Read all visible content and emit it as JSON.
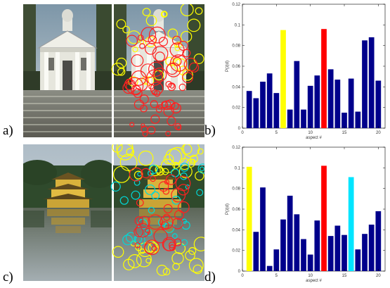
{
  "figure": {
    "panels": [
      {
        "label": "a)"
      },
      {
        "label": "b)"
      },
      {
        "label": "c)"
      },
      {
        "label": "d)"
      }
    ]
  },
  "colors": {
    "bar_default": "#00008b",
    "highlight_yellow": "#ffff00",
    "highlight_red": "#ff0000",
    "highlight_cyan": "#00e5ff",
    "circle_yellow": "#ffff00",
    "circle_red": "#ff2020",
    "circle_cyan": "#00d8d8"
  },
  "images": [
    {
      "subject": "church-photo-with-detected-features",
      "circle_colors": [
        "yellow",
        "red"
      ]
    },
    {
      "subject": "golden-pavilion-photo-with-detected-features",
      "circle_colors": [
        "yellow",
        "red",
        "cyan"
      ]
    }
  ],
  "chart_data": [
    {
      "type": "bar",
      "xlabel": "aspect #",
      "ylabel": "P(z|d)",
      "xlim": [
        0,
        21
      ],
      "ylim": [
        0,
        0.12
      ],
      "xticks": [
        0,
        5,
        10,
        15,
        20
      ],
      "yticks": [
        0,
        0.02,
        0.04,
        0.06,
        0.08,
        0.1,
        0.12
      ],
      "ytick_labels": [
        "0",
        "0.02",
        "0.04",
        "0.06",
        "0.08",
        "0.1",
        "0.12"
      ],
      "x": [
        1,
        2,
        3,
        4,
        5,
        6,
        7,
        8,
        9,
        10,
        11,
        12,
        13,
        14,
        15,
        16,
        17,
        18,
        19,
        20
      ],
      "values": [
        0.036,
        0.029,
        0.045,
        0.053,
        0.034,
        0.095,
        0.018,
        0.065,
        0.018,
        0.041,
        0.051,
        0.096,
        0.057,
        0.047,
        0.015,
        0.048,
        0.016,
        0.085,
        0.088,
        0.046
      ],
      "highlight": {
        "6": "yellow",
        "12": "red"
      }
    },
    {
      "type": "bar",
      "xlabel": "aspect #",
      "ylabel": "P(z|d)",
      "xlim": [
        0,
        21
      ],
      "ylim": [
        0,
        0.12
      ],
      "xticks": [
        0,
        5,
        10,
        15,
        20
      ],
      "yticks": [
        0,
        0.02,
        0.04,
        0.06,
        0.08,
        0.1,
        0.12
      ],
      "ytick_labels": [
        "0",
        "0.02",
        "0.04",
        "0.06",
        "0.08",
        "0.1",
        "0.12"
      ],
      "x": [
        1,
        2,
        3,
        4,
        5,
        6,
        7,
        8,
        9,
        10,
        11,
        12,
        13,
        14,
        15,
        16,
        17,
        18,
        19,
        20
      ],
      "values": [
        0.101,
        0.038,
        0.081,
        0.005,
        0.021,
        0.05,
        0.073,
        0.055,
        0.031,
        0.016,
        0.049,
        0.102,
        0.034,
        0.044,
        0.035,
        0.091,
        0.021,
        0.036,
        0.045,
        0.058
      ],
      "highlight": {
        "1": "yellow",
        "12": "red",
        "16": "cyan"
      }
    }
  ]
}
